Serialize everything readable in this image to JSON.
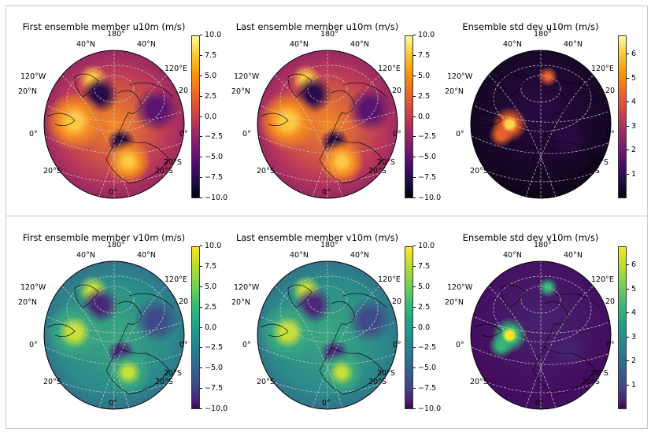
{
  "figure": {
    "panels": [
      {
        "title": "First ensemble member u10m (m/s)",
        "cmap": "inferno",
        "ticks": [
          "10.0",
          "7.5",
          "5.0",
          "2.5",
          "0.0",
          "−2.5",
          "−5.0",
          "−7.5",
          "−10.0"
        ]
      },
      {
        "title": "Last ensemble member u10m (m/s)",
        "cmap": "inferno",
        "ticks": [
          "10.0",
          "7.5",
          "5.0",
          "2.5",
          "0.0",
          "−2.5",
          "−5.0",
          "−7.5",
          "−10.0"
        ]
      },
      {
        "title": "Ensemble std dev u10m (m/s)",
        "cmap": "inferno",
        "ticks": [
          "6",
          "5",
          "4",
          "3",
          "2",
          "1"
        ]
      },
      {
        "title": "First ensemble member v10m (m/s)",
        "cmap": "viridis",
        "ticks": [
          "10.0",
          "7.5",
          "5.0",
          "2.5",
          "0.0",
          "−2.5",
          "−5.0",
          "−7.5",
          "−10.0"
        ]
      },
      {
        "title": "Last ensemble member v10m (m/s)",
        "cmap": "viridis",
        "ticks": [
          "10.0",
          "7.5",
          "5.0",
          "2.5",
          "0.0",
          "−2.5",
          "−5.0",
          "−7.5",
          "−10.0"
        ]
      },
      {
        "title": "Ensemble std dev v10m (m/s)",
        "cmap": "viridis",
        "ticks": [
          "6",
          "5",
          "4",
          "3",
          "2",
          "1"
        ]
      }
    ],
    "grid_labels": {
      "top": "180°",
      "top_left": "40°N",
      "top_right": "40°N",
      "left_upper": "120°W",
      "left_mid": "20°N",
      "right_upper": "120°E",
      "right_mid": "20",
      "left_eq": "0°",
      "right_eq": "0°",
      "bottom_left": "20°S",
      "bottom_right_1": "20°S",
      "bottom_right_2": "20°S",
      "bottom": "0°"
    }
  },
  "chart_data": [
    {
      "type": "heatmap",
      "title": "First ensemble member u10m (m/s)",
      "projection": "orthographic",
      "colormap": "inferno",
      "clim": [
        -10,
        10
      ],
      "colorbar_ticks": [
        10.0,
        7.5,
        5.0,
        2.5,
        0.0,
        -2.5,
        -5.0,
        -7.5,
        -10.0
      ],
      "grid_labels": [
        "180°",
        "40°N",
        "40°N",
        "120°W",
        "20°N",
        "120°E",
        "20",
        "0°",
        "0°",
        "20°S",
        "20°S",
        "20°S",
        "0°"
      ]
    },
    {
      "type": "heatmap",
      "title": "Last ensemble member u10m (m/s)",
      "projection": "orthographic",
      "colormap": "inferno",
      "clim": [
        -10,
        10
      ],
      "colorbar_ticks": [
        10.0,
        7.5,
        5.0,
        2.5,
        0.0,
        -2.5,
        -5.0,
        -7.5,
        -10.0
      ]
    },
    {
      "type": "heatmap",
      "title": "Ensemble std dev u10m (m/s)",
      "projection": "orthographic",
      "colormap": "inferno",
      "clim": [
        0,
        6.8
      ],
      "colorbar_ticks": [
        1,
        2,
        3,
        4,
        5,
        6
      ]
    },
    {
      "type": "heatmap",
      "title": "First ensemble member v10m (m/s)",
      "projection": "orthographic",
      "colormap": "viridis",
      "clim": [
        -10,
        10
      ],
      "colorbar_ticks": [
        10.0,
        7.5,
        5.0,
        2.5,
        0.0,
        -2.5,
        -5.0,
        -7.5,
        -10.0
      ]
    },
    {
      "type": "heatmap",
      "title": "Last ensemble member v10m (m/s)",
      "projection": "orthographic",
      "colormap": "viridis",
      "clim": [
        -10,
        10
      ],
      "colorbar_ticks": [
        10.0,
        7.5,
        5.0,
        2.5,
        0.0,
        -2.5,
        -5.0,
        -7.5,
        -10.0
      ]
    },
    {
      "type": "heatmap",
      "title": "Ensemble std dev v10m (m/s)",
      "projection": "orthographic",
      "colormap": "viridis",
      "clim": [
        0,
        6.8
      ],
      "colorbar_ticks": [
        1,
        2,
        3,
        4,
        5,
        6
      ]
    }
  ]
}
